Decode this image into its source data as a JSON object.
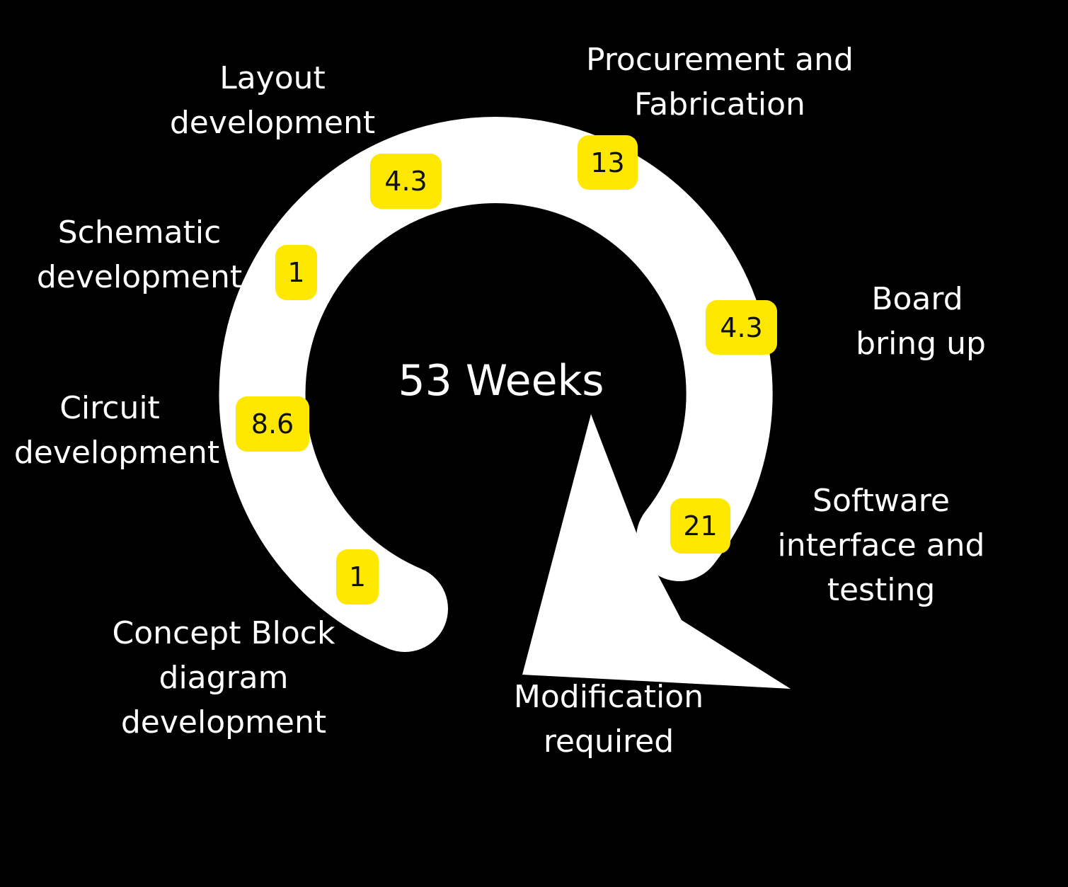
{
  "total": "53 Weeks",
  "colors": {
    "background": "#000000",
    "ring": "#ffffff",
    "badge": "#ffe800",
    "text": "#ffffff",
    "badge_text": "#111111"
  },
  "stages": [
    {
      "id": "concept",
      "label_lines": [
        "Concept Block",
        "diagram",
        "development"
      ],
      "weeks": "1"
    },
    {
      "id": "circuit",
      "label_lines": [
        "Circuit",
        "development"
      ],
      "weeks": "8.6"
    },
    {
      "id": "schematic",
      "label_lines": [
        "Schematic",
        "development"
      ],
      "weeks": "1"
    },
    {
      "id": "layout",
      "label_lines": [
        "Layout",
        "development"
      ],
      "weeks": "4.3"
    },
    {
      "id": "procurement",
      "label_lines": [
        "Procurement and",
        "Fabrication"
      ],
      "weeks": "13"
    },
    {
      "id": "bringup",
      "label_lines": [
        "Board",
        "bring up"
      ],
      "weeks": "4.3"
    },
    {
      "id": "software",
      "label_lines": [
        "Software",
        "interface and",
        "testing"
      ],
      "weeks": "21"
    },
    {
      "id": "modification",
      "label_lines": [
        "Modification",
        "required"
      ]
    }
  ]
}
